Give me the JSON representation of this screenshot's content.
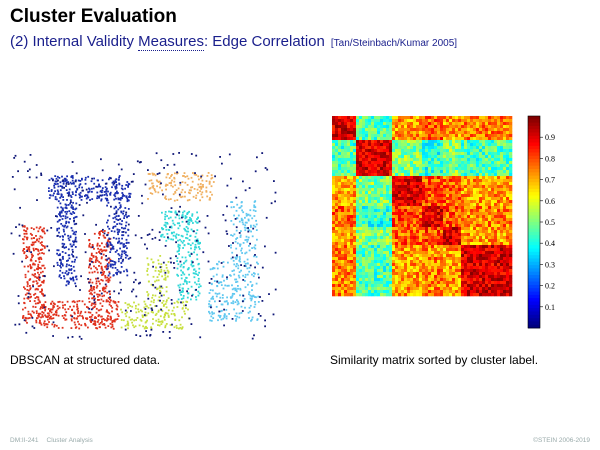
{
  "slide": {
    "title": "Cluster Evaluation",
    "subtitle_prefix": "(2) Internal Validity ",
    "subtitle_link": "Measures",
    "subtitle_suffix": ": Edge Correlation",
    "reference": "[Tan/Steinbach/Kumar 2005]"
  },
  "captions": {
    "left": "DBSCAN at structured data.",
    "right": "Similarity matrix sorted by cluster label."
  },
  "footer": {
    "page": "DM:II-241",
    "section": "Cluster Analysis",
    "copyright": "©STEIN 2006-2019"
  },
  "chart_data": [
    {
      "type": "scatter",
      "title": "",
      "xlabel": "",
      "ylabel": "",
      "series": [
        {
          "color": "#e0321e",
          "shape": "U-shape (left)"
        },
        {
          "color": "#1a2fb0",
          "shape": "U-shape (top)"
        },
        {
          "color": "#f0b060",
          "shape": "bar (top)"
        },
        {
          "color": "#30d8d8",
          "shape": "cluster (center)"
        },
        {
          "color": "#c8e040",
          "shape": "cluster (bottom center)"
        },
        {
          "color": "#60c8f0",
          "shape": "arc (right)"
        },
        {
          "color": "#101878",
          "shape": "noise"
        }
      ]
    },
    {
      "type": "heatmap",
      "title": "",
      "xlabel": "",
      "ylabel": "",
      "colorbar_ticks": [
        0.1,
        0.2,
        0.3,
        0.4,
        0.5,
        0.6,
        0.7,
        0.8,
        0.9
      ],
      "colorbar_range": [
        0,
        1
      ],
      "blocks": [
        0.13,
        0.2,
        0.17,
        0.12,
        0.1,
        0.28
      ]
    }
  ]
}
